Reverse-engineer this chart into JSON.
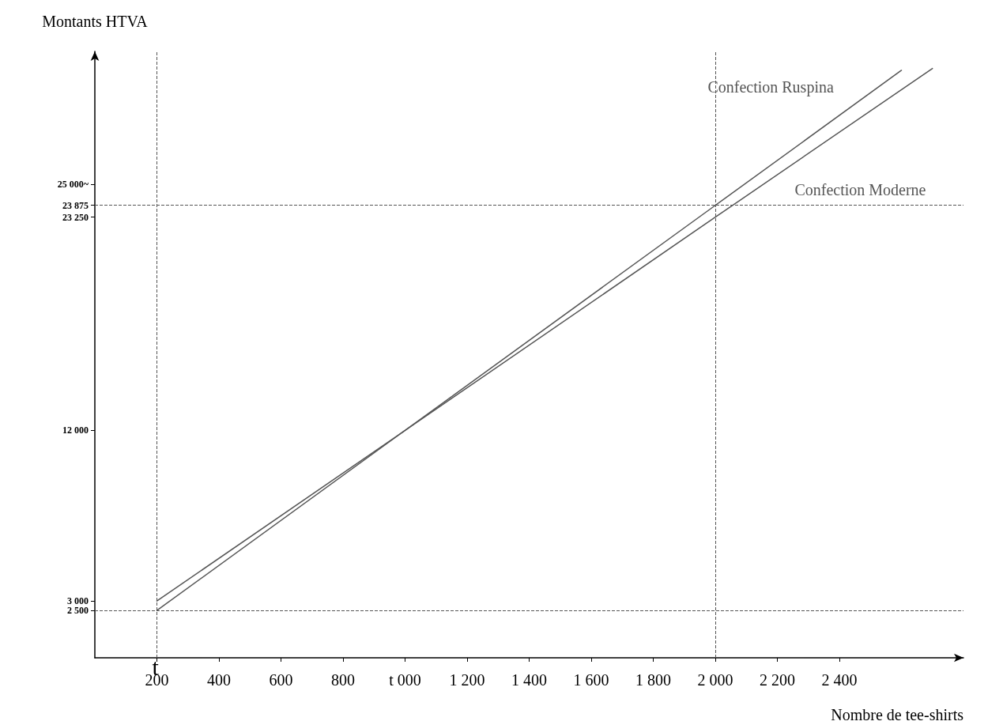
{
  "chart_data": {
    "type": "line",
    "xlabel": "Nombre de tee-shirts",
    "ylabel": "Montants HTVA",
    "annotations": [
      "t"
    ],
    "series": [
      {
        "name": "Confection Ruspina",
        "color": "#555555",
        "x": [
          200,
          1000,
          2000,
          2600
        ],
        "values": [
          2500,
          12000,
          23875,
          31000
        ]
      },
      {
        "name": "Confection Moderne",
        "color": "#555555",
        "x": [
          200,
          1000,
          2000,
          2700
        ],
        "values": [
          3000,
          12000,
          23250,
          31100
        ]
      }
    ],
    "xlim": [
      0,
      2800
    ],
    "xticks": [
      200,
      400,
      600,
      800,
      {
        "value": 1000,
        "label": "t 000"
      },
      {
        "value": 1200,
        "label": "1 200"
      },
      {
        "value": 1400,
        "label": "1 400"
      },
      {
        "value": 1600,
        "label": "1 600"
      },
      {
        "value": 1800,
        "label": "1 800"
      },
      {
        "value": 2000,
        "label": "2 000"
      },
      {
        "value": 2200,
        "label": "2 200"
      },
      {
        "value": 2400,
        "label": "2 400"
      }
    ],
    "ylim": [
      0,
      32000
    ],
    "yticks": [
      {
        "value": 2500,
        "label": "2 500"
      },
      {
        "value": 3000,
        "label": "3 000"
      },
      {
        "value": 12000,
        "label": "12 000"
      },
      {
        "value": 23250,
        "label": "23 250"
      },
      {
        "value": 23875,
        "label": "23 875"
      },
      {
        "value": 25000,
        "label": "25 000~"
      }
    ],
    "ref_lines": [
      {
        "axis": "y",
        "value": 23875,
        "line_style": "dashed",
        "color": "#555555"
      },
      {
        "axis": "y",
        "value": 2500,
        "line_style": "dashed",
        "color": "#555555"
      },
      {
        "axis": "x",
        "value": 2000,
        "line_style": "dashed",
        "color": "#555555"
      },
      {
        "axis": "x",
        "value": 200,
        "line_style": "dashed",
        "color": "#555555"
      }
    ],
    "grid": false,
    "legend": false,
    "marker": "none",
    "line_style": "solid"
  }
}
